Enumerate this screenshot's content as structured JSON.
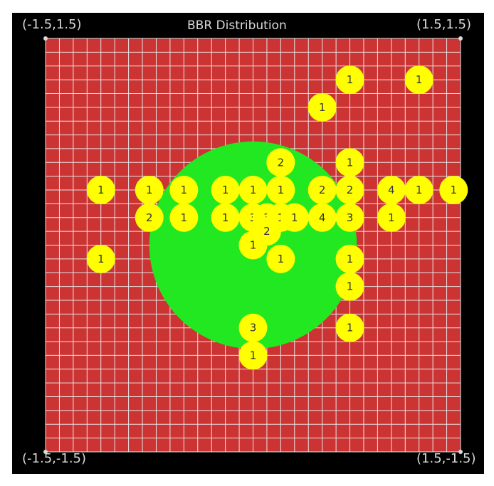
{
  "title": "BBR Distribution",
  "corners": {
    "top_left": "(-1.5,1.5)",
    "top_right": "(1.5,1.5)",
    "bottom_left": "(-1.5,-1.5)",
    "bottom_right": "(1.5,-1.5)"
  },
  "colors": {
    "background": "#000000",
    "field": "#cc3333",
    "grid": "#e6e6e6",
    "circle": "#22e822",
    "marker": "#ffff00",
    "label": "#333333",
    "corner_text": "#d9d9d9"
  },
  "chart_data": {
    "type": "scatter",
    "title": "BBR Distribution",
    "xlim": [
      -1.5,
      1.5
    ],
    "ylim": [
      -1.5,
      1.5
    ],
    "grid": true,
    "grid_divisions": 30,
    "circle": {
      "cx": 0.0,
      "cy": 0.0,
      "r": 0.75
    },
    "points": [
      {
        "x": 0.7,
        "y": 1.2,
        "count": 1
      },
      {
        "x": 1.2,
        "y": 1.2,
        "count": 1
      },
      {
        "x": 0.5,
        "y": 1.0,
        "count": 1
      },
      {
        "x": 0.2,
        "y": 0.6,
        "count": 2
      },
      {
        "x": 0.7,
        "y": 0.6,
        "count": 1
      },
      {
        "x": -1.1,
        "y": 0.4,
        "count": 1
      },
      {
        "x": -0.75,
        "y": 0.4,
        "count": 1
      },
      {
        "x": -0.5,
        "y": 0.4,
        "count": 1
      },
      {
        "x": -0.2,
        "y": 0.4,
        "count": 1
      },
      {
        "x": 0.0,
        "y": 0.4,
        "count": 1
      },
      {
        "x": 0.2,
        "y": 0.4,
        "count": 1
      },
      {
        "x": 0.5,
        "y": 0.4,
        "count": 2
      },
      {
        "x": 0.7,
        "y": 0.4,
        "count": 2
      },
      {
        "x": 1.0,
        "y": 0.4,
        "count": 4
      },
      {
        "x": 1.2,
        "y": 0.4,
        "count": 1
      },
      {
        "x": 1.45,
        "y": 0.4,
        "count": 1
      },
      {
        "x": -0.75,
        "y": 0.2,
        "count": 2
      },
      {
        "x": -0.5,
        "y": 0.2,
        "count": 1
      },
      {
        "x": -0.2,
        "y": 0.2,
        "count": 1
      },
      {
        "x": 0.0,
        "y": 0.2,
        "count": 3
      },
      {
        "x": 0.1,
        "y": 0.2,
        "count": 3
      },
      {
        "x": 0.2,
        "y": 0.2,
        "count": 1
      },
      {
        "x": 0.3,
        "y": 0.2,
        "count": 1
      },
      {
        "x": 0.5,
        "y": 0.2,
        "count": 4
      },
      {
        "x": 0.7,
        "y": 0.2,
        "count": 3
      },
      {
        "x": 1.0,
        "y": 0.2,
        "count": 1
      },
      {
        "x": 0.1,
        "y": 0.1,
        "count": 2
      },
      {
        "x": 0.0,
        "y": 0.0,
        "count": 1
      },
      {
        "x": -1.1,
        "y": -0.1,
        "count": 1
      },
      {
        "x": 0.2,
        "y": -0.1,
        "count": 1
      },
      {
        "x": 0.7,
        "y": -0.1,
        "count": 1
      },
      {
        "x": 0.7,
        "y": -0.3,
        "count": 1
      },
      {
        "x": 0.0,
        "y": -0.6,
        "count": 3
      },
      {
        "x": 0.7,
        "y": -0.6,
        "count": 1
      },
      {
        "x": 0.0,
        "y": -0.8,
        "count": 1
      }
    ]
  }
}
